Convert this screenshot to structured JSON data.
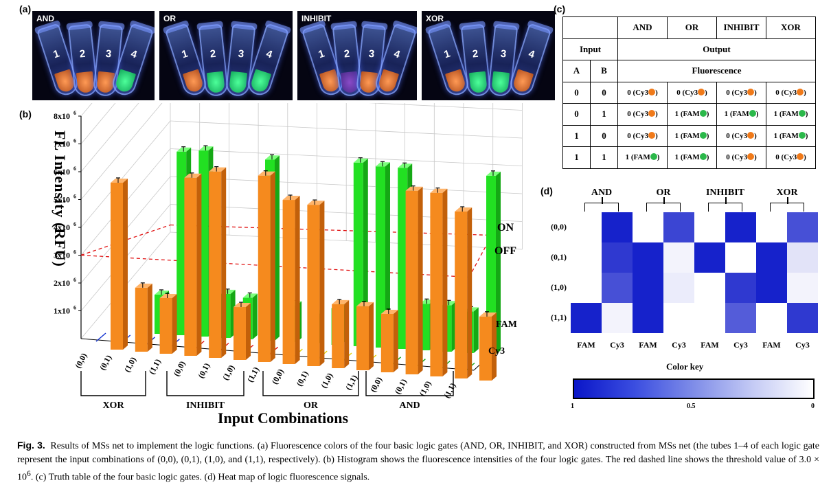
{
  "panels": {
    "a": "(a)",
    "b": "(b)",
    "c": "(c)",
    "d": "(d)"
  },
  "photos": [
    {
      "title": "AND",
      "tubes": [
        {
          "num": "1",
          "liquid": "orange"
        },
        {
          "num": "2",
          "liquid": "orange"
        },
        {
          "num": "3",
          "liquid": "orange"
        },
        {
          "num": "4",
          "liquid": "green"
        }
      ]
    },
    {
      "title": "OR",
      "tubes": [
        {
          "num": "1",
          "liquid": "orange"
        },
        {
          "num": "2",
          "liquid": "green"
        },
        {
          "num": "3",
          "liquid": "green"
        },
        {
          "num": "4",
          "liquid": "green"
        }
      ]
    },
    {
      "title": "INHIBIT",
      "tubes": [
        {
          "num": "1",
          "liquid": "orange"
        },
        {
          "num": "2",
          "liquid": "purple"
        },
        {
          "num": "3",
          "liquid": "orange"
        },
        {
          "num": "4",
          "liquid": "orange"
        }
      ]
    },
    {
      "title": "XOR",
      "tubes": [
        {
          "num": "1",
          "liquid": "orange"
        },
        {
          "num": "2",
          "liquid": "green"
        },
        {
          "num": "3",
          "liquid": "green"
        },
        {
          "num": "4",
          "liquid": "orange"
        }
      ]
    }
  ],
  "chart_data": {
    "type": "bar",
    "ylabel": "FL Intensity (RFU)",
    "xlabel": "Input Combinations",
    "ylim": [
      0,
      8000000
    ],
    "yticks": [
      "1x10",
      "2x10",
      "3x10",
      "4x10",
      "5x10",
      "6x10",
      "7x10",
      "8x10"
    ],
    "ytick_exp": "6",
    "threshold": 3000000,
    "threshold_labels": {
      "on": "ON",
      "off": "OFF"
    },
    "depth_labels": {
      "fam": "FAM",
      "cy3": "Cy3"
    },
    "groups": [
      {
        "name": "XOR",
        "inputs": [
          "(0,0)",
          "(0,1)",
          "(1,0)",
          "(1,1)"
        ],
        "fam": [
          1600000,
          7500000,
          7600000,
          1800000
        ],
        "cy3": [
          6000000,
          2300000,
          2000000,
          6400000
        ]
      },
      {
        "name": "INHIBIT",
        "inputs": [
          "(0,0)",
          "(0,1)",
          "(1,0)",
          "(1,1)"
        ],
        "fam": [
          1700000,
          7400000,
          1500000,
          1200000
        ],
        "cy3": [
          6700000,
          1900000,
          6700000,
          5900000
        ]
      },
      {
        "name": "OR",
        "inputs": [
          "(0,0)",
          "(0,1)",
          "(1,0)",
          "(1,1)"
        ],
        "fam": [
          1500000,
          7500000,
          7400000,
          7400000
        ],
        "cy3": [
          5800000,
          2300000,
          2300000,
          2100000
        ]
      },
      {
        "name": "AND",
        "inputs": [
          "(0,0)",
          "(0,1)",
          "(1,0)",
          "(1,1)"
        ],
        "fam": [
          1900000,
          1900000,
          1700000,
          7300000
        ],
        "cy3": [
          6600000,
          6600000,
          6000000,
          2300000
        ]
      }
    ]
  },
  "truth_table": {
    "gates": [
      "AND",
      "OR",
      "INHIBIT",
      "XOR"
    ],
    "input_header": "Input",
    "output_header": "Output",
    "col_a": "A",
    "col_b": "B",
    "fluorescence": "Fluorescence",
    "rows": [
      {
        "a": "0",
        "b": "0",
        "cells": [
          {
            "t": "0 (Cy3",
            "c": "orange"
          },
          {
            "t": "0 (Cy3",
            "c": "orange"
          },
          {
            "t": "0 (Cy3",
            "c": "orange"
          },
          {
            "t": "0 (Cy3",
            "c": "orange"
          }
        ]
      },
      {
        "a": "0",
        "b": "1",
        "cells": [
          {
            "t": "0 (Cy3",
            "c": "orange"
          },
          {
            "t": "1 (FAM",
            "c": "green"
          },
          {
            "t": "1 (FAM",
            "c": "green"
          },
          {
            "t": "1 (FAM",
            "c": "green"
          }
        ]
      },
      {
        "a": "1",
        "b": "0",
        "cells": [
          {
            "t": "0 (Cy3",
            "c": "orange"
          },
          {
            "t": "1 (FAM",
            "c": "green"
          },
          {
            "t": "0 (Cy3",
            "c": "orange"
          },
          {
            "t": "1 (FAM",
            "c": "green"
          }
        ]
      },
      {
        "a": "1",
        "b": "1",
        "cells": [
          {
            "t": "1 (FAM",
            "c": "green"
          },
          {
            "t": "1 (FAM",
            "c": "green"
          },
          {
            "t": "0 (Cy3",
            "c": "orange"
          },
          {
            "t": "0 (Cy3",
            "c": "orange"
          }
        ]
      }
    ],
    "close_paren": ")"
  },
  "heatmap": {
    "gates": [
      "AND",
      "OR",
      "INHIBIT",
      "XOR"
    ],
    "rows": [
      "(0,0)",
      "(0,1)",
      "(1,0)",
      "(1,1)"
    ],
    "cols": [
      "FAM",
      "Cy3",
      "FAM",
      "Cy3",
      "FAM",
      "Cy3",
      "FAM",
      "Cy3"
    ],
    "values": [
      [
        0.0,
        0.95,
        0.0,
        0.8,
        0.0,
        0.95,
        0.0,
        0.75
      ],
      [
        0.0,
        0.85,
        0.95,
        0.05,
        0.95,
        0.0,
        0.95,
        0.12
      ],
      [
        0.0,
        0.75,
        0.95,
        0.08,
        0.0,
        0.85,
        0.95,
        0.05
      ],
      [
        0.95,
        0.05,
        0.95,
        0.0,
        0.0,
        0.7,
        0.0,
        0.85
      ]
    ],
    "key_title": "Color key",
    "key_ticks": [
      "1",
      "0.5",
      "0"
    ]
  },
  "caption": {
    "label": "Fig. 3.",
    "text": "Results of MSs net to implement the logic functions. (a) Fluorescence colors of the four basic logic gates (AND, OR, INHIBIT, and XOR) constructed from MSs net (the tubes 1–4 of each logic gate represent the input combinations of (0,0), (0,1), (1,0), and (1,1), respectively). (b) Histogram shows the fluorescence intensities of the four logic gates. The red dashed line shows the threshold value of 3.0 × 10",
    "exp": "6",
    "text2": ". (c) Truth table of the four basic logic gates. (d) Heat map of logic fluorescence signals."
  }
}
